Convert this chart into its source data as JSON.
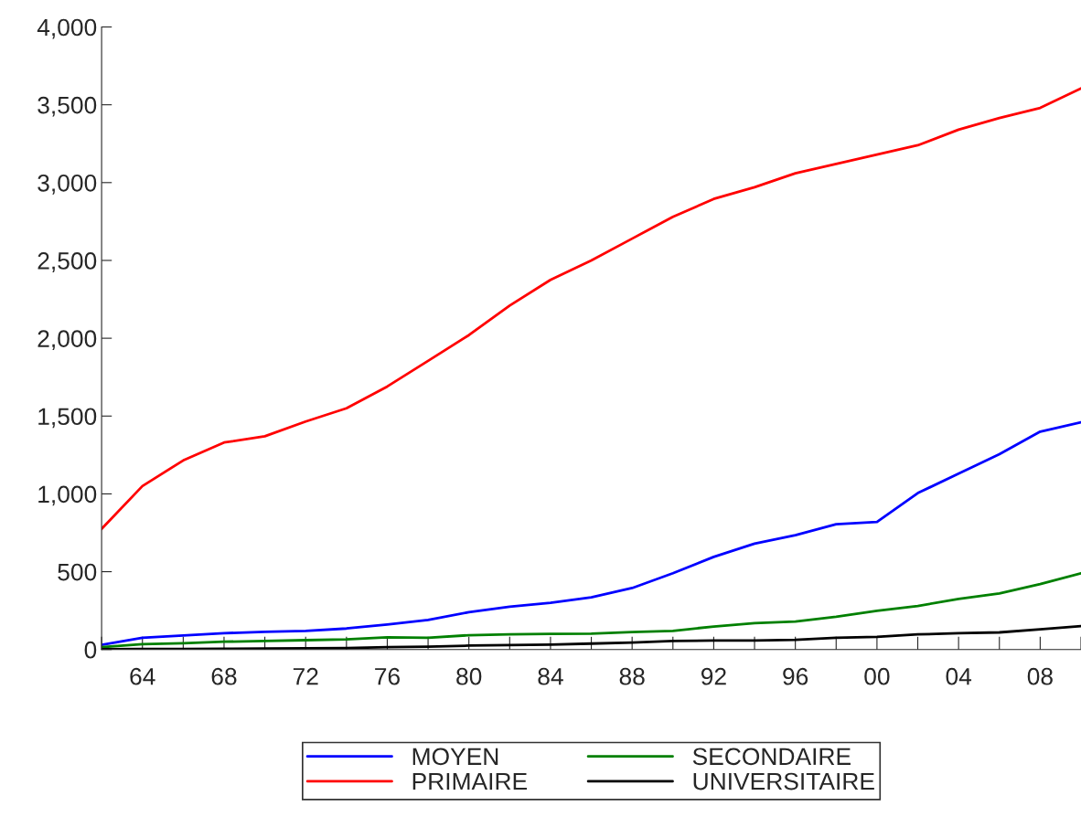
{
  "chart_data": {
    "type": "line",
    "x": [
      1962,
      1964,
      1966,
      1968,
      1970,
      1972,
      1974,
      1976,
      1978,
      1980,
      1982,
      1984,
      1986,
      1988,
      1990,
      1992,
      1994,
      1996,
      1998,
      2000,
      2002,
      2004,
      2006,
      2008,
      2010
    ],
    "series": [
      {
        "name": "MOYEN",
        "color": "#0000ff",
        "values": [
          30,
          75,
          90,
          105,
          113,
          120,
          135,
          160,
          190,
          240,
          275,
          300,
          335,
          395,
          490,
          595,
          680,
          735,
          805,
          820,
          1005,
          1130,
          1255,
          1400,
          1460
        ]
      },
      {
        "name": "PRIMAIRE",
        "color": "#ff0000",
        "values": [
          775,
          1050,
          1215,
          1330,
          1370,
          1465,
          1550,
          1690,
          1855,
          2020,
          2210,
          2375,
          2500,
          2640,
          2780,
          2895,
          2970,
          3060,
          3120,
          3180,
          3240,
          3340,
          3415,
          3480,
          3605
        ]
      },
      {
        "name": "SECONDAIRE",
        "color": "#008000",
        "values": [
          15,
          35,
          40,
          50,
          55,
          60,
          65,
          78,
          75,
          92,
          97,
          100,
          102,
          112,
          120,
          148,
          170,
          180,
          210,
          248,
          280,
          325,
          360,
          420,
          490
        ]
      },
      {
        "name": "UNIVERSITAIRE",
        "color": "#000000",
        "values": [
          2,
          3,
          4,
          5,
          6,
          8,
          10,
          15,
          18,
          25,
          28,
          32,
          38,
          45,
          55,
          58,
          58,
          62,
          75,
          82,
          97,
          105,
          110,
          130,
          150
        ]
      }
    ],
    "xlim": [
      1962,
      2010
    ],
    "xticks": [
      {
        "value": 1962,
        "label": null
      },
      {
        "value": 1964,
        "label": "64"
      },
      {
        "value": 1966,
        "label": null
      },
      {
        "value": 1968,
        "label": "68"
      },
      {
        "value": 1970,
        "label": null
      },
      {
        "value": 1972,
        "label": "72"
      },
      {
        "value": 1974,
        "label": null
      },
      {
        "value": 1976,
        "label": "76"
      },
      {
        "value": 1978,
        "label": null
      },
      {
        "value": 1980,
        "label": "80"
      },
      {
        "value": 1982,
        "label": null
      },
      {
        "value": 1984,
        "label": "84"
      },
      {
        "value": 1986,
        "label": null
      },
      {
        "value": 1988,
        "label": "88"
      },
      {
        "value": 1990,
        "label": null
      },
      {
        "value": 1992,
        "label": "92"
      },
      {
        "value": 1994,
        "label": null
      },
      {
        "value": 1996,
        "label": "96"
      },
      {
        "value": 1998,
        "label": null
      },
      {
        "value": 2000,
        "label": "00"
      },
      {
        "value": 2002,
        "label": null
      },
      {
        "value": 2004,
        "label": "04"
      },
      {
        "value": 2006,
        "label": null
      },
      {
        "value": 2008,
        "label": "08"
      },
      {
        "value": 2010,
        "label": null
      }
    ],
    "ylim": [
      0,
      4000
    ],
    "yticks": [
      {
        "value": 0,
        "label": "0"
      },
      {
        "value": 500,
        "label": "500"
      },
      {
        "value": 1000,
        "label": "1,000"
      },
      {
        "value": 1500,
        "label": "1,500"
      },
      {
        "value": 2000,
        "label": "2,000"
      },
      {
        "value": 2500,
        "label": "2,500"
      },
      {
        "value": 3000,
        "label": "3,000"
      },
      {
        "value": 3500,
        "label": "3,500"
      },
      {
        "value": 4000,
        "label": "4,000"
      }
    ],
    "grid": false,
    "legend": "bottom",
    "line_style": "solid",
    "marker": "none"
  }
}
